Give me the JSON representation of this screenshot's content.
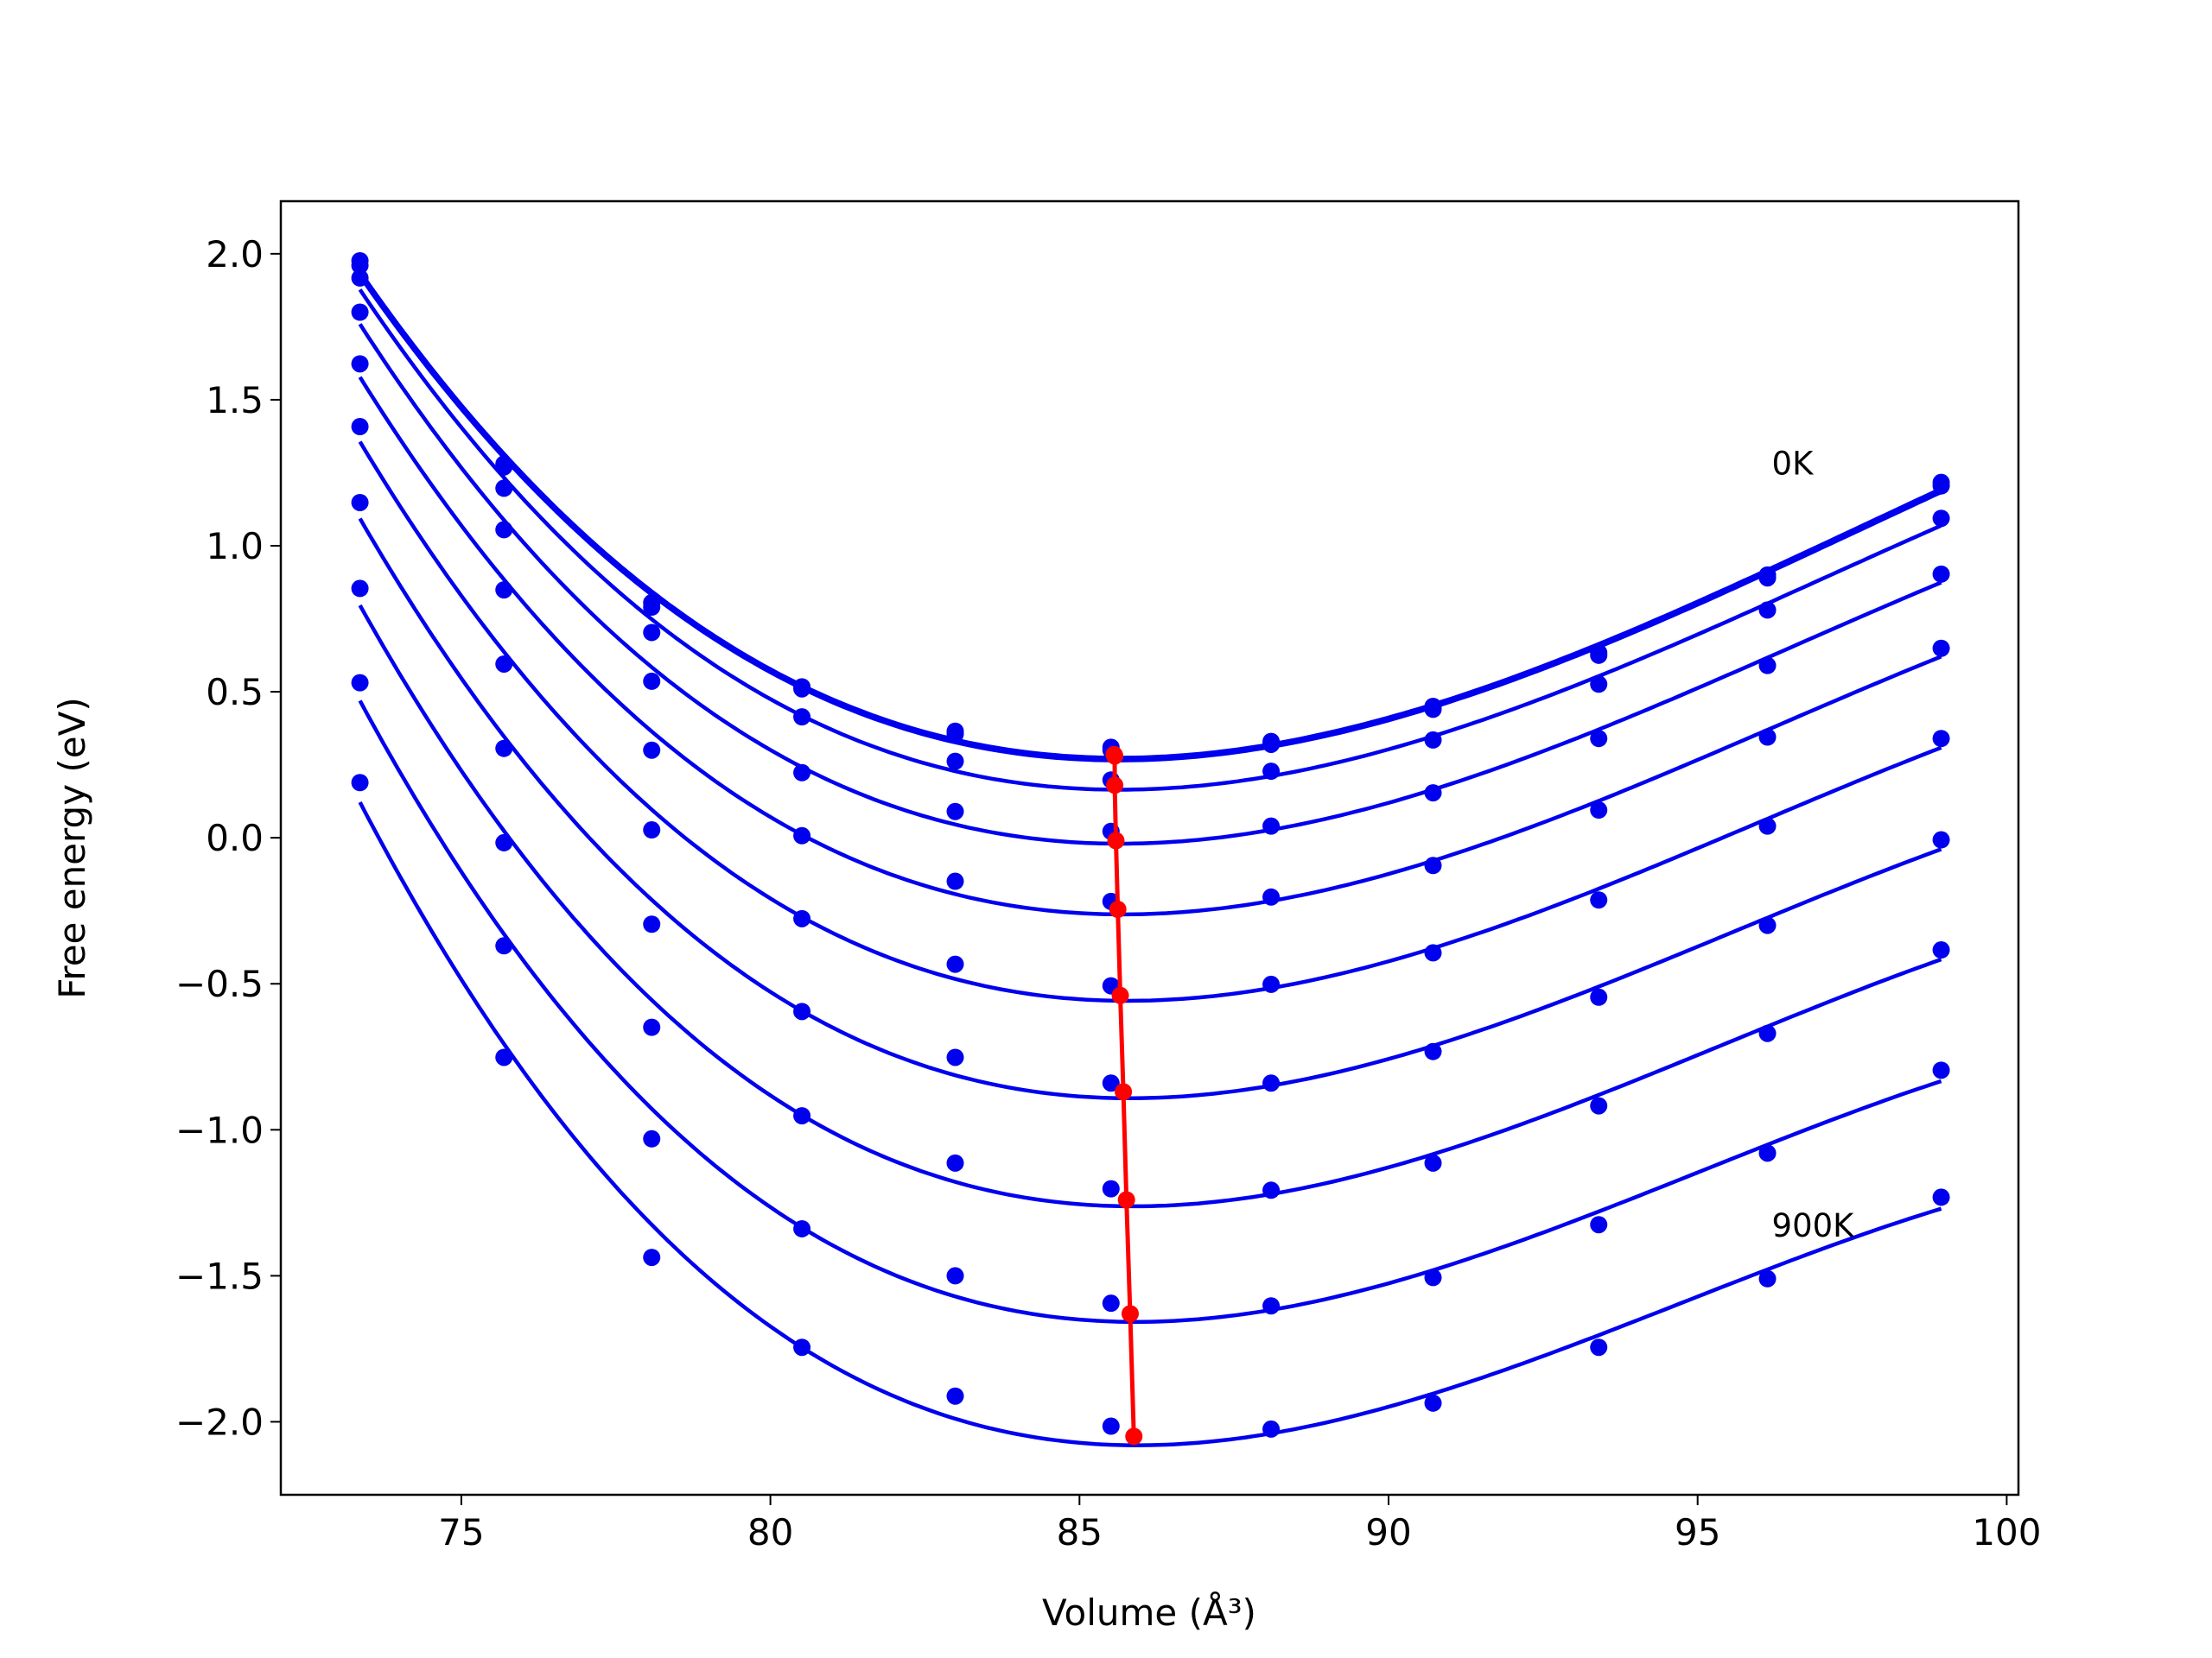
{
  "chart_data": {
    "type": "scatter",
    "xlabel": "Volume (Å³)",
    "ylabel": "Free energy (eV)",
    "x": [
      73.36,
      75.69,
      78.08,
      80.51,
      82.99,
      85.51,
      88.1,
      90.72,
      93.4,
      96.13,
      98.94
    ],
    "series": [
      {
        "color": "#0000ee",
        "values": [
          1.976,
          1.28,
          0.805,
          0.517,
          0.365,
          0.31,
          0.33,
          0.45,
          0.634,
          0.9,
          1.217
        ]
      },
      {
        "color": "#0000ee",
        "values": [
          1.96,
          1.27,
          0.79,
          0.51,
          0.355,
          0.3,
          0.32,
          0.44,
          0.625,
          0.89,
          1.205
        ]
      },
      {
        "color": "#0000ee",
        "values": [
          1.917,
          1.197,
          0.703,
          0.414,
          0.262,
          0.198,
          0.228,
          0.335,
          0.526,
          0.78,
          1.094
        ]
      },
      {
        "color": "#0000ee",
        "values": [
          1.8,
          1.055,
          0.536,
          0.223,
          0.09,
          0.022,
          0.04,
          0.154,
          0.34,
          0.59,
          0.903
        ]
      },
      {
        "color": "#0000ee",
        "values": [
          1.623,
          0.849,
          0.3,
          0.007,
          -0.149,
          -0.218,
          -0.203,
          -0.095,
          0.095,
          0.345,
          0.649
        ]
      },
      {
        "color": "#0000ee",
        "values": [
          1.408,
          0.595,
          0.027,
          -0.277,
          -0.433,
          -0.507,
          -0.502,
          -0.394,
          -0.213,
          0.04,
          0.34
        ]
      },
      {
        "color": "#0000ee",
        "values": [
          1.148,
          0.306,
          -0.296,
          -0.595,
          -0.752,
          -0.84,
          -0.84,
          -0.732,
          -0.546,
          -0.3,
          -0.007
        ]
      },
      {
        "color": "#0000ee",
        "values": [
          0.854,
          -0.017,
          -0.649,
          -0.952,
          -1.114,
          -1.202,
          -1.207,
          -1.114,
          -0.918,
          -0.67,
          -0.384
        ]
      },
      {
        "color": "#0000ee",
        "values": [
          0.531,
          -0.37,
          -1.031,
          -1.339,
          -1.5,
          -1.594,
          -1.603,
          -1.506,
          -1.325,
          -1.08,
          -0.796
        ]
      },
      {
        "color": "#0000ee",
        "values": [
          0.189,
          -0.752,
          -1.437,
          -1.745,
          -1.912,
          -2.015,
          -2.025,
          -1.936,
          -1.745,
          -1.51,
          -1.231
        ]
      }
    ],
    "minima": {
      "color": "#ff0000",
      "x": [
        85.56,
        85.57,
        85.57,
        85.59,
        85.62,
        85.66,
        85.71,
        85.76,
        85.82,
        85.88
      ],
      "values": [
        0.285,
        0.28,
        0.18,
        -0.01,
        -0.245,
        -0.54,
        -0.87,
        -1.24,
        -1.63,
        -2.05
      ]
    },
    "annotations": [
      {
        "text": "0K",
        "x": 96.2,
        "y": 1.28
      },
      {
        "text": "900K",
        "x": 96.2,
        "y": -1.33
      }
    ],
    "xlim": [
      72.08,
      100.19
    ],
    "ylim": [
      -2.25,
      2.18
    ],
    "xticks": [
      75,
      80,
      85,
      90,
      95,
      100
    ],
    "yticks": [
      {
        "value": -2.0,
        "label": "−2.0"
      },
      {
        "value": -1.5,
        "label": "−1.5"
      },
      {
        "value": -1.0,
        "label": "−1.0"
      },
      {
        "value": -0.5,
        "label": "−0.5"
      },
      {
        "value": 0.0,
        "label": "0.0"
      },
      0.5,
      {
        "value": 1.0,
        "label": "1.0"
      },
      1.5,
      {
        "value": 2.0,
        "label": "2.0"
      }
    ]
  }
}
